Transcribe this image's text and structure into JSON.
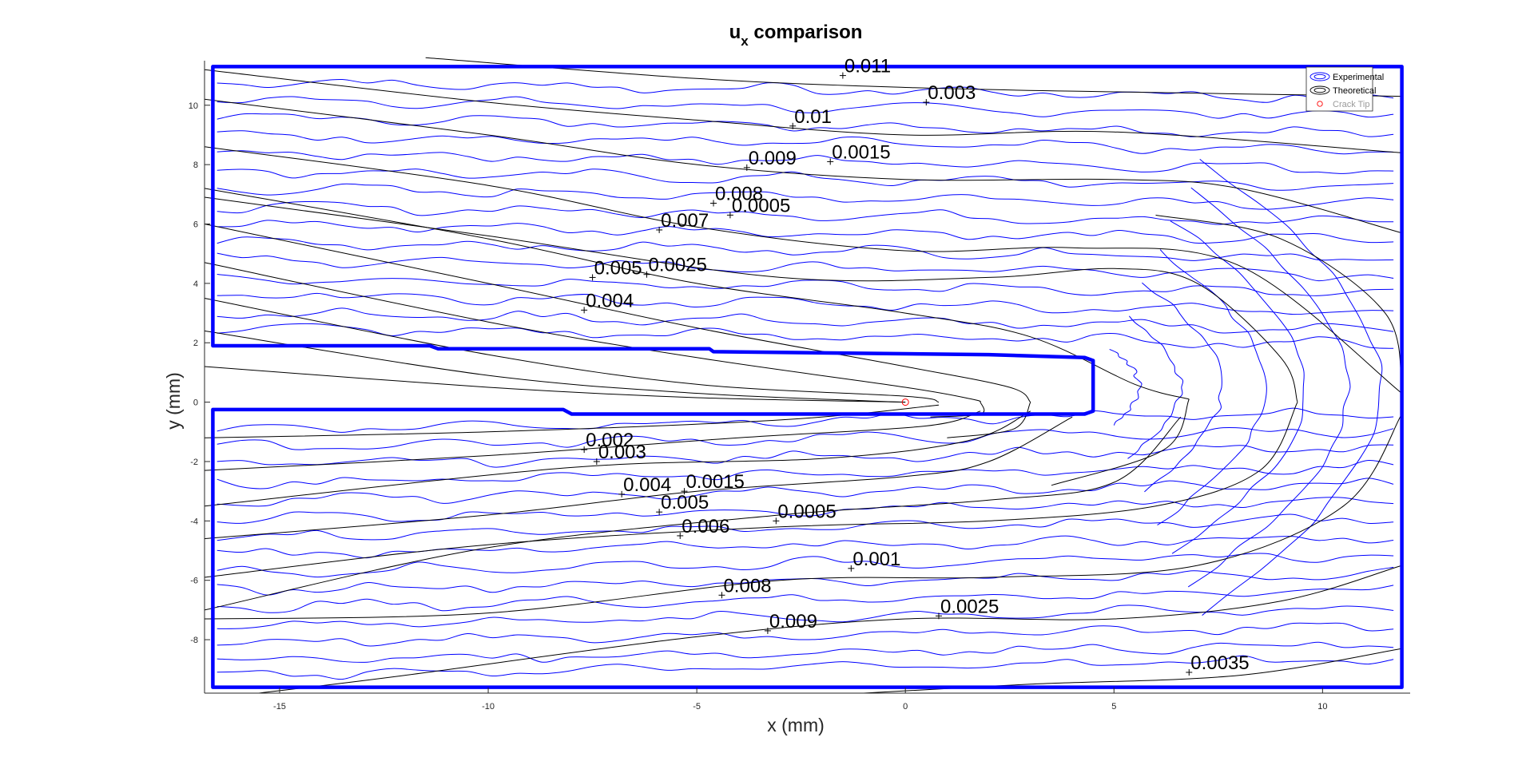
{
  "chart_data": {
    "type": "contour",
    "title": "u",
    "title_subscript": "x",
    "title_suffix": " comparison",
    "xlabel": "x (mm)",
    "ylabel": "y (mm)",
    "xlim": [
      -16.8,
      12.1
    ],
    "ylim": [
      -9.8,
      11.5
    ],
    "xticks": [
      -15,
      -10,
      -5,
      0,
      5,
      10
    ],
    "yticks": [
      -8,
      -6,
      -4,
      -2,
      0,
      2,
      4,
      6,
      8,
      10
    ],
    "xtick_labels": [
      "-15",
      "-10",
      "-5",
      "0",
      "5",
      "10"
    ],
    "ytick_labels": [
      "-8",
      "-6",
      "-4",
      "-2",
      "0",
      "2",
      "4",
      "6",
      "8",
      "10"
    ],
    "grid": false,
    "legend_position": "top-right",
    "legend": [
      {
        "name": "Experimental",
        "color": "#0000ff"
      },
      {
        "name": "Theoretical",
        "color": "#000000"
      },
      {
        "name": "Crack Tip",
        "color": "#ff0000"
      }
    ],
    "crack_tip": {
      "x": 0,
      "y": 0
    },
    "experimental_boundary": [
      [
        -16.6,
        11.3
      ],
      [
        11.9,
        11.3
      ],
      [
        11.9,
        -9.6
      ],
      [
        -16.6,
        -9.6
      ],
      [
        -16.6,
        -0.25
      ],
      [
        -8.2,
        -0.25
      ],
      [
        -8.0,
        -0.4
      ],
      [
        4.3,
        -0.4
      ],
      [
        4.5,
        -0.3
      ],
      [
        4.5,
        1.4
      ],
      [
        4.3,
        1.5
      ],
      [
        2.0,
        1.6
      ],
      [
        -4.6,
        1.7
      ],
      [
        -4.7,
        1.8
      ],
      [
        -11.2,
        1.8
      ],
      [
        -11.4,
        1.9
      ],
      [
        -16.6,
        1.9
      ],
      [
        -16.6,
        11.3
      ]
    ],
    "contour_labels": [
      {
        "x": -1.5,
        "y": 11.0,
        "text": "0.011"
      },
      {
        "x": 0.5,
        "y": 10.1,
        "text": "0.003"
      },
      {
        "x": -2.7,
        "y": 9.3,
        "text": "0.01"
      },
      {
        "x": -3.8,
        "y": 7.9,
        "text": "0.009"
      },
      {
        "x": -1.8,
        "y": 8.1,
        "text": "0.0015"
      },
      {
        "x": -4.6,
        "y": 6.7,
        "text": "0.008"
      },
      {
        "x": -4.2,
        "y": 6.3,
        "text": "0.0005"
      },
      {
        "x": -5.9,
        "y": 5.8,
        "text": "0.007"
      },
      {
        "x": -7.5,
        "y": 4.2,
        "text": "0.005"
      },
      {
        "x": -6.2,
        "y": 4.3,
        "text": "0.0025"
      },
      {
        "x": -7.7,
        "y": 3.1,
        "text": "0.004"
      },
      {
        "x": -7.7,
        "y": -1.6,
        "text": "0.002"
      },
      {
        "x": -7.4,
        "y": -2.0,
        "text": "0.003"
      },
      {
        "x": -6.8,
        "y": -3.1,
        "text": "0.004"
      },
      {
        "x": -5.3,
        "y": -3.0,
        "text": "0.0015"
      },
      {
        "x": -5.9,
        "y": -3.7,
        "text": "0.005"
      },
      {
        "x": -5.4,
        "y": -4.5,
        "text": "0.006"
      },
      {
        "x": -3.1,
        "y": -4.0,
        "text": "0.0005"
      },
      {
        "x": -1.3,
        "y": -5.6,
        "text": "0.001"
      },
      {
        "x": -4.4,
        "y": -6.5,
        "text": "0.008"
      },
      {
        "x": -3.3,
        "y": -7.7,
        "text": "0.009"
      },
      {
        "x": 0.8,
        "y": -7.2,
        "text": "0.0025"
      },
      {
        "x": 6.8,
        "y": -9.1,
        "text": "0.0035"
      }
    ],
    "theoretical_lines": [
      [
        [
          -11.5,
          11.6
        ],
        [
          -5,
          10.9
        ],
        [
          0,
          10.6
        ],
        [
          5,
          10.45
        ],
        [
          11.9,
          10.3
        ]
      ],
      [
        [
          -16.8,
          11.2
        ],
        [
          -10,
          10.1
        ],
        [
          -5,
          9.5
        ],
        [
          0,
          9.0
        ],
        [
          5,
          9.1
        ],
        [
          11.9,
          8.4
        ]
      ],
      [
        [
          -16.8,
          10.2
        ],
        [
          -10,
          9.0
        ],
        [
          -5,
          8.0
        ],
        [
          0,
          7.5
        ],
        [
          5,
          7.5
        ],
        [
          8,
          7.2
        ],
        [
          11.9,
          5.7
        ]
      ],
      [
        [
          -16.8,
          8.6
        ],
        [
          -10,
          7.3
        ],
        [
          -5,
          5.9
        ],
        [
          0,
          5.1
        ],
        [
          4,
          5.2
        ],
        [
          8,
          4.6
        ],
        [
          11.9,
          0.3
        ]
      ],
      [
        [
          -16.8,
          7.2
        ],
        [
          -10,
          5.5
        ],
        [
          -5,
          4.0
        ],
        [
          0,
          3.0
        ],
        [
          3,
          2.2
        ],
        [
          5.5,
          0.6
        ],
        [
          6.8,
          0.1
        ]
      ],
      [
        [
          -16.8,
          6.0
        ],
        [
          -10,
          4.0
        ],
        [
          -5,
          2.5
        ],
        [
          0,
          1.2
        ],
        [
          2.5,
          0.5
        ],
        [
          3.0,
          0.0
        ]
      ],
      [
        [
          -16.8,
          4.7
        ],
        [
          -10,
          2.7
        ],
        [
          -5,
          1.5
        ],
        [
          0,
          0.5
        ],
        [
          1.6,
          0.1
        ],
        [
          1.8,
          0.0
        ]
      ],
      [
        [
          -16.8,
          3.5
        ],
        [
          -10,
          1.6
        ],
        [
          -5,
          0.6
        ],
        [
          0,
          0.2
        ],
        [
          0.8,
          0.0
        ]
      ],
      [
        [
          -16.8,
          2.4
        ],
        [
          -10,
          0.9
        ],
        [
          -5,
          0.3
        ],
        [
          -1,
          0.05
        ],
        [
          0,
          0.0
        ]
      ],
      [
        [
          -16.8,
          1.2
        ],
        [
          -10,
          0.5
        ],
        [
          -5,
          0.15
        ],
        [
          0,
          0.0
        ]
      ],
      [
        [
          9.4,
          0.0
        ],
        [
          8.5,
          -2.3
        ],
        [
          6.0,
          -3.5
        ],
        [
          2.0,
          -4.0
        ],
        [
          -3.0,
          -4.2
        ],
        [
          -10,
          -4.8
        ],
        [
          -16.8,
          -5.9
        ]
      ],
      [
        [
          11.9,
          -0.4
        ],
        [
          10.5,
          -3.5
        ],
        [
          7.0,
          -5.5
        ],
        [
          2.0,
          -5.9
        ],
        [
          -3.0,
          -6.0
        ],
        [
          -10,
          -7.1
        ],
        [
          -16.8,
          -7.3
        ]
      ],
      [
        [
          11.9,
          -5.5
        ],
        [
          9.0,
          -6.7
        ],
        [
          5.0,
          -7.3
        ],
        [
          0.0,
          -7.3
        ],
        [
          -5.0,
          -7.9
        ],
        [
          -12.0,
          -9.2
        ],
        [
          -15.5,
          -9.8
        ]
      ],
      [
        [
          11.9,
          -8.3
        ],
        [
          8.0,
          -9.2
        ],
        [
          3.0,
          -9.5
        ],
        [
          -1.0,
          -9.8
        ]
      ],
      [
        [
          4.0,
          -0.5
        ],
        [
          2.0,
          -2.0
        ],
        [
          0.0,
          -2.5
        ],
        [
          -5.0,
          -3.0
        ],
        [
          -10,
          -3.8
        ],
        [
          -16.8,
          -4.6
        ]
      ],
      [
        [
          6.6,
          -0.5
        ],
        [
          5.0,
          -2.7
        ],
        [
          2.0,
          -3.3
        ],
        [
          -3.0,
          -3.8
        ],
        [
          -10,
          -4.9
        ],
        [
          -16.8,
          -7.0
        ]
      ],
      [
        [
          3.0,
          -0.3
        ],
        [
          1.5,
          -1.3
        ],
        [
          -2.0,
          -1.9
        ],
        [
          -8.0,
          -2.2
        ],
        [
          -16.8,
          -3.5
        ]
      ],
      [
        [
          1.8,
          -0.3
        ],
        [
          0.5,
          -0.8
        ],
        [
          -4.0,
          -1.2
        ],
        [
          -10,
          -1.8
        ],
        [
          -16.8,
          -2.3
        ]
      ],
      [
        [
          0.8,
          -0.1
        ],
        [
          -3.0,
          -0.6
        ],
        [
          -10,
          -1.0
        ],
        [
          -16.8,
          -1.2
        ]
      ],
      [
        [
          1.8,
          0.0
        ],
        [
          1.8,
          -0.4
        ],
        [
          0.6,
          -0.5
        ]
      ],
      [
        [
          3.0,
          0.0
        ],
        [
          2.6,
          -0.9
        ],
        [
          1.0,
          -1.2
        ]
      ],
      [
        [
          6.8,
          0.1
        ],
        [
          6.2,
          -1.6
        ],
        [
          3.5,
          -2.8
        ]
      ],
      [
        [
          9.4,
          0.0
        ],
        [
          9.0,
          1.5
        ],
        [
          7.0,
          4.0
        ],
        [
          5.0,
          4.5
        ],
        [
          2.0,
          4.2
        ],
        [
          -3.0,
          4.2
        ],
        [
          -10,
          5.6
        ],
        [
          -16.8,
          6.9
        ]
      ],
      [
        [
          11.9,
          0.3
        ],
        [
          11.5,
          3.0
        ],
        [
          9.0,
          5.5
        ],
        [
          6.0,
          6.3
        ]
      ]
    ],
    "experimental_levels_y": [
      10.8,
      10.2,
      9.6,
      9.0,
      8.4,
      7.8,
      7.2,
      6.6,
      6.0,
      5.4,
      4.8,
      4.2,
      3.6,
      3.0,
      2.5,
      -0.9,
      -1.5,
      -2.1,
      -2.7,
      -3.3,
      -3.9,
      -4.5,
      -5.1,
      -5.7,
      -6.3,
      -6.9,
      -7.5,
      -8.1,
      -8.7,
      -9.2
    ]
  }
}
